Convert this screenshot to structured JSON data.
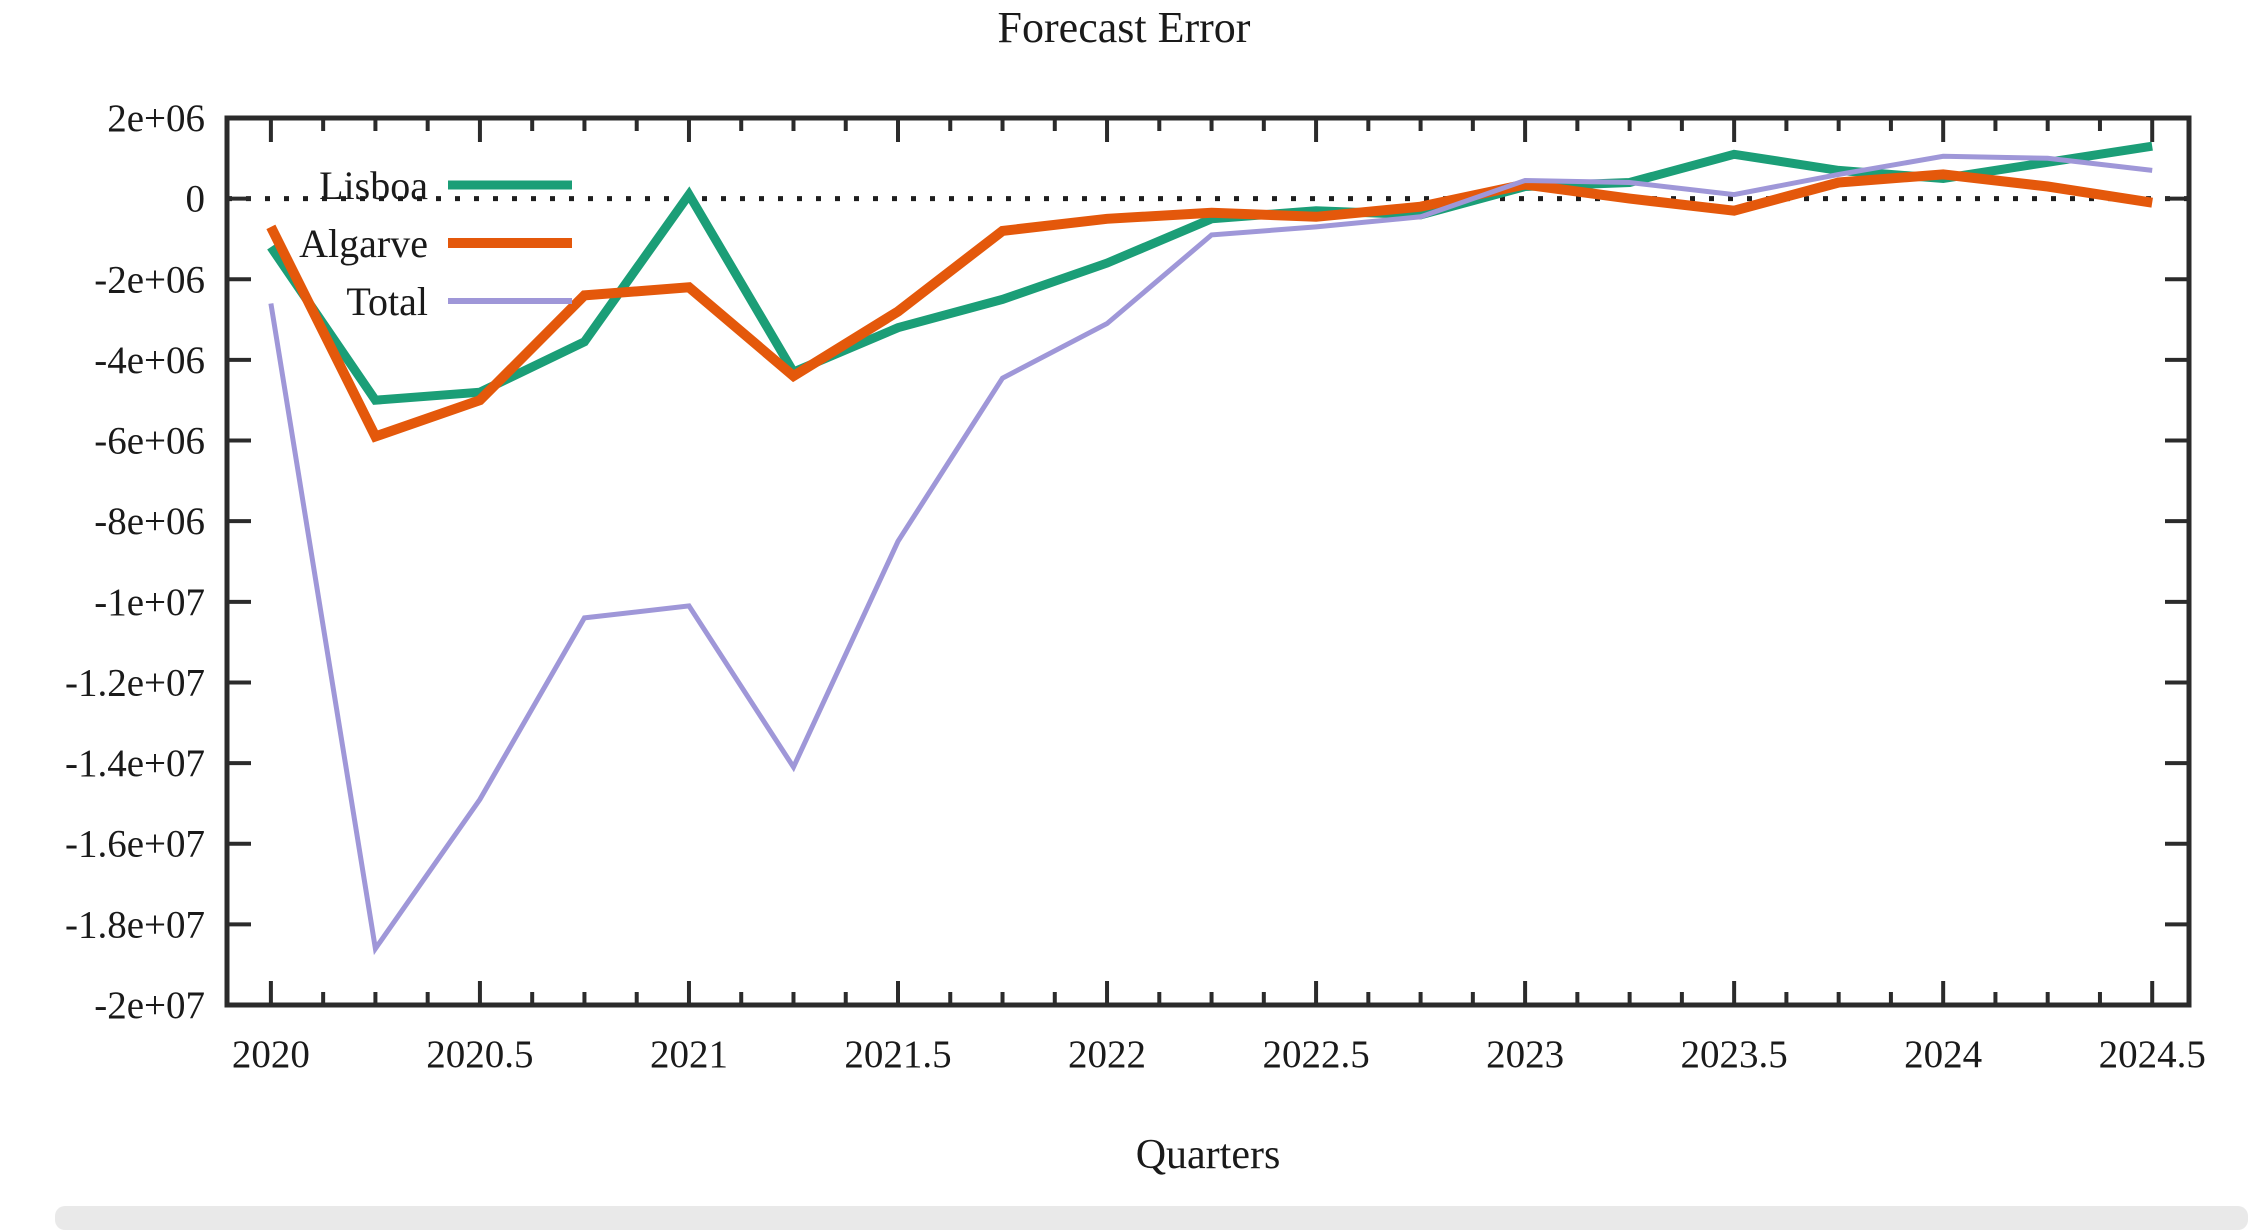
{
  "chart_data": {
    "type": "line",
    "title": "Forecast Error",
    "xlabel": "Quarters",
    "ylabel": "",
    "grid": false,
    "legend_position": "top-left-inside",
    "zero_line_dotted": true,
    "background_color": "#ffffff",
    "axis_color": "#2b2b2b",
    "xlim": [
      2019.895,
      2024.588
    ],
    "ylim": [
      -20000000,
      2000000
    ],
    "x_minor_step": 0.125,
    "x": [
      2020,
      2020.25,
      2020.5,
      2020.75,
      2021,
      2021.25,
      2021.5,
      2021.75,
      2022,
      2022.25,
      2022.5,
      2022.75,
      2023,
      2023.25,
      2023.5,
      2023.75,
      2024,
      2024.25,
      2024.5
    ],
    "series": [
      {
        "name": "Lisboa",
        "color": "#1b9e77",
        "width": 9,
        "values": [
          -1200000,
          -5000000,
          -4800000,
          -3550000,
          100000,
          -4300000,
          -3200000,
          -2500000,
          -1600000,
          -500000,
          -300000,
          -400000,
          300000,
          400000,
          1100000,
          700000,
          500000,
          900000,
          1300000
        ]
      },
      {
        "name": "Algarve",
        "color": "#e4580b",
        "width": 10,
        "values": [
          -700000,
          -5900000,
          -5000000,
          -2400000,
          -2200000,
          -4400000,
          -2800000,
          -800000,
          -500000,
          -350000,
          -450000,
          -200000,
          350000,
          0,
          -300000,
          400000,
          600000,
          300000,
          -100000
        ]
      },
      {
        "name": "Total",
        "color": "#9f97d8",
        "width": 5,
        "values": [
          -2600000,
          -18600000,
          -14900000,
          -10400000,
          -10100000,
          -14100000,
          -8500000,
          -4450000,
          -3100000,
          -900000,
          -700000,
          -450000,
          450000,
          400000,
          100000,
          600000,
          1050000,
          1000000,
          700000
        ]
      }
    ],
    "yticks": {
      "labels": [
        "2e+06",
        "0",
        "-2e+06",
        "-4e+06",
        "-6e+06",
        "-8e+06",
        "-1e+07",
        "-1.2e+07",
        "-1.4e+07",
        "-1.6e+07",
        "-1.8e+07",
        "-2e+07"
      ],
      "values": [
        2000000,
        0,
        -2000000,
        -4000000,
        -6000000,
        -8000000,
        -10000000,
        -12000000,
        -14000000,
        -16000000,
        -18000000,
        -20000000
      ]
    },
    "xticks": {
      "labels": [
        "2020",
        "2020.5",
        "2021",
        "2021.5",
        "2022",
        "2022.5",
        "2023",
        "2023.5",
        "2024",
        "2024.5"
      ],
      "values": [
        2020,
        2020.5,
        2021,
        2021.5,
        2022,
        2022.5,
        2023,
        2023.5,
        2024,
        2024.5
      ]
    }
  }
}
